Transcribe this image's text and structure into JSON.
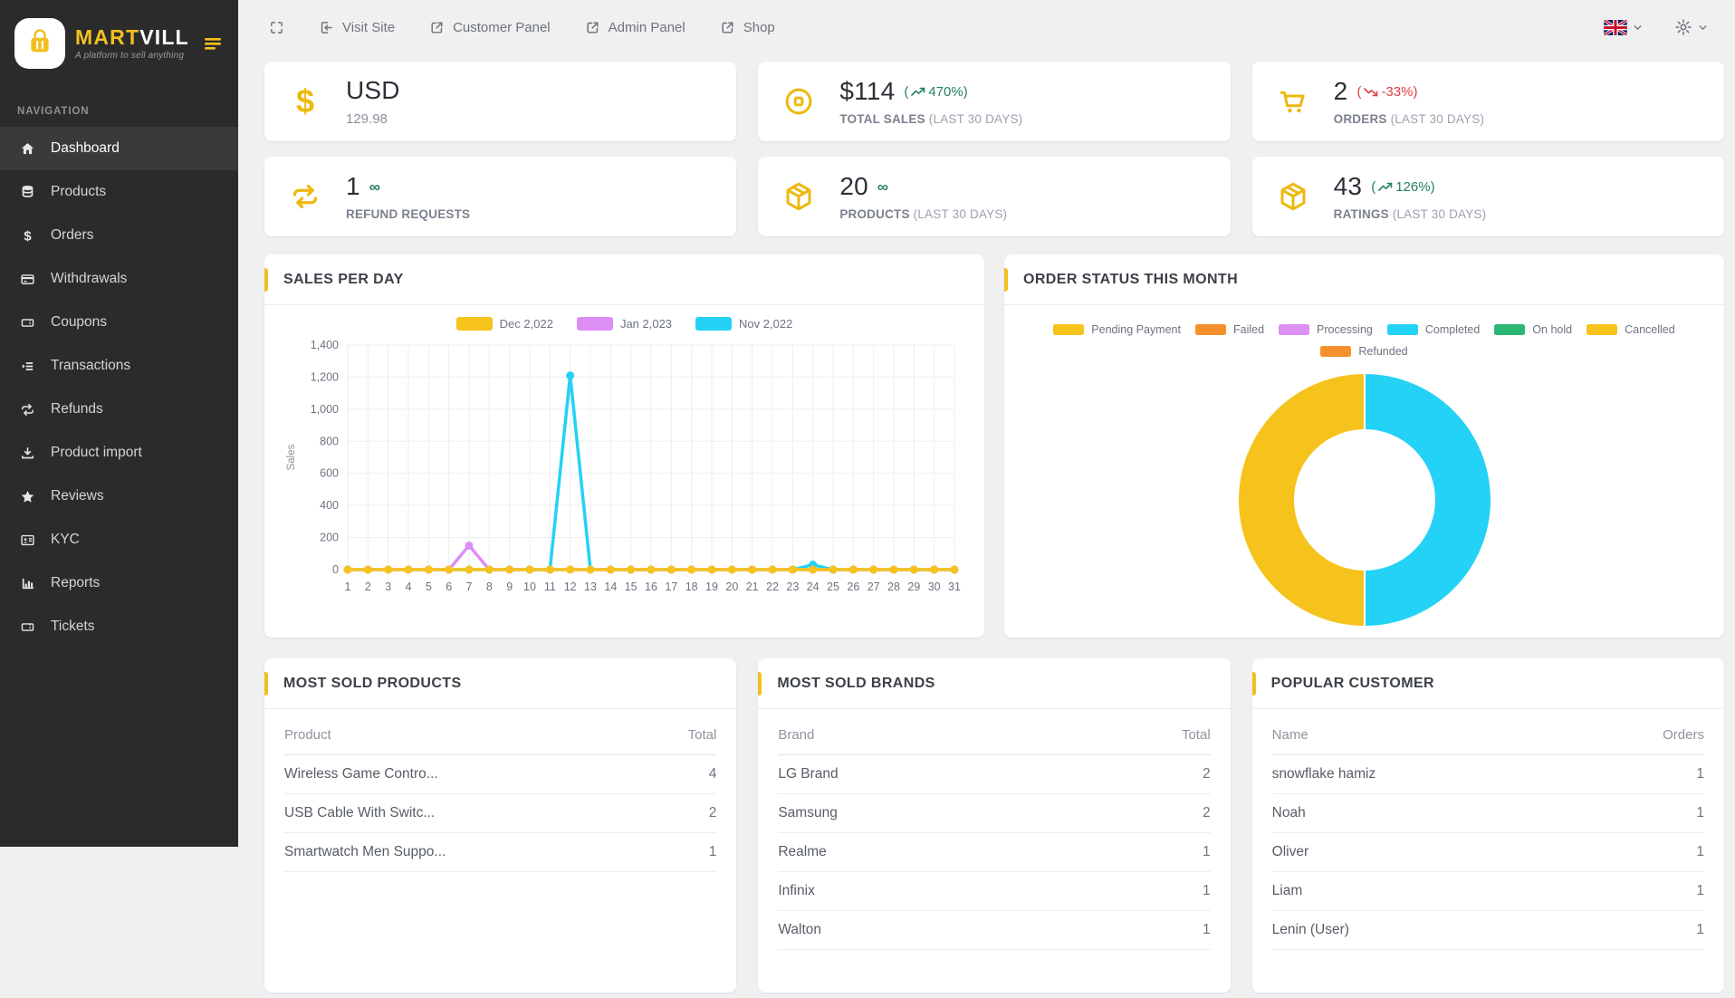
{
  "colors": {
    "accent_gold": "#f2c01e",
    "chart_yellow": "#f6c31c",
    "chart_violet": "#dc8ef5",
    "chart_cyan": "#23d2f4",
    "orange": "#f5912d",
    "green": "#2cb673",
    "trend_up": "#23825f",
    "trend_down": "#e23e3e",
    "sidebar_bg": "#2b2b2b",
    "sidebar_active_bg": "#3a3a3a"
  },
  "brand": {
    "name_primary": "MART",
    "name_secondary": "VILL",
    "tagline": "A platform to sell anything"
  },
  "sidebar": {
    "section_label": "NAVIGATION",
    "items": [
      {
        "label": "Dashboard",
        "icon": "home",
        "active": true
      },
      {
        "label": "Products",
        "icon": "database",
        "active": false
      },
      {
        "label": "Orders",
        "icon": "dollar",
        "active": false
      },
      {
        "label": "Withdrawals",
        "icon": "credit-card",
        "active": false
      },
      {
        "label": "Coupons",
        "icon": "ticket",
        "active": false
      },
      {
        "label": "Transactions",
        "icon": "list",
        "active": false
      },
      {
        "label": "Refunds",
        "icon": "repeat",
        "active": false
      },
      {
        "label": "Product import",
        "icon": "download",
        "active": false
      },
      {
        "label": "Reviews",
        "icon": "star",
        "active": false
      },
      {
        "label": "KYC",
        "icon": "id-card",
        "active": false
      },
      {
        "label": "Reports",
        "icon": "bar-chart",
        "active": false
      },
      {
        "label": "Tickets",
        "icon": "ticket",
        "active": false
      }
    ]
  },
  "topbar": {
    "links": [
      {
        "label": "Visit Site",
        "icon": "enter"
      },
      {
        "label": "Customer Panel",
        "icon": "external"
      },
      {
        "label": "Admin Panel",
        "icon": "external"
      },
      {
        "label": "Shop",
        "icon": "external"
      }
    ]
  },
  "stats": [
    {
      "id": "currency",
      "icon": "dollar-sign",
      "value": "USD",
      "label": "129.98",
      "label_style": "plain"
    },
    {
      "id": "total-sales",
      "icon": "coin",
      "value": "$114",
      "trend": {
        "open": "(",
        "value": "470%",
        "close": ")",
        "dir": "up"
      },
      "label": "TOTAL SALES",
      "label_paren": "(LAST 30 DAYS)"
    },
    {
      "id": "orders",
      "icon": "cart",
      "value": "2",
      "trend": {
        "open": "(",
        "value": "-33%",
        "close": ")",
        "dir": "down"
      },
      "label": "ORDERS",
      "label_paren": "(LAST 30 DAYS)"
    },
    {
      "id": "refund-requests",
      "icon": "refresh",
      "value": "1",
      "infinity": "∞",
      "label": "REFUND REQUESTS"
    },
    {
      "id": "products",
      "icon": "box",
      "value": "20",
      "infinity": "∞",
      "label": "PRODUCTS",
      "label_paren": "(LAST 30 DAYS)"
    },
    {
      "id": "ratings",
      "icon": "box",
      "value": "43",
      "trend": {
        "open": "(",
        "value": "126%",
        "close": ")",
        "dir": "up"
      },
      "label": "RATINGS",
      "label_paren": "(LAST 30 DAYS)"
    }
  ],
  "panels": {
    "sales": {
      "title": "SALES PER DAY"
    },
    "order_status": {
      "title": "ORDER STATUS THIS MONTH"
    },
    "most_sold_products": {
      "title": "MOST SOLD PRODUCTS",
      "columns": [
        "Product",
        "Total"
      ],
      "rows": [
        [
          "Wireless Game Contro...",
          "4"
        ],
        [
          "USB Cable With Switc...",
          "2"
        ],
        [
          "Smartwatch Men Suppo...",
          "1"
        ]
      ]
    },
    "most_sold_brands": {
      "title": "MOST SOLD BRANDS",
      "columns": [
        "Brand",
        "Total"
      ],
      "rows": [
        [
          "LG Brand",
          "2"
        ],
        [
          "Samsung",
          "2"
        ],
        [
          "Realme",
          "1"
        ],
        [
          "Infinix",
          "1"
        ],
        [
          "Walton",
          "1"
        ]
      ]
    },
    "popular_customer": {
      "title": "POPULAR CUSTOMER",
      "columns": [
        "Name",
        "Orders"
      ],
      "rows": [
        [
          "snowflake hamiz",
          "1"
        ],
        [
          "Noah",
          "1"
        ],
        [
          "Oliver",
          "1"
        ],
        [
          "Liam",
          "1"
        ],
        [
          "Lenin (User)",
          "1"
        ]
      ]
    }
  },
  "chart_data": [
    {
      "id": "sales-per-day",
      "type": "line",
      "title": "SALES PER DAY",
      "xlabel": "",
      "ylabel": "Sales",
      "ylim": [
        0,
        1400
      ],
      "ytick_labels": [
        "0",
        "200",
        "400",
        "600",
        "800",
        "1,000",
        "1,200",
        "1,400"
      ],
      "x": [
        1,
        2,
        3,
        4,
        5,
        6,
        7,
        8,
        9,
        10,
        11,
        12,
        13,
        14,
        15,
        16,
        17,
        18,
        19,
        20,
        21,
        22,
        23,
        24,
        25,
        26,
        27,
        28,
        29,
        30,
        31
      ],
      "series": [
        {
          "name": "Dec 2,022",
          "color": "#f6c31c",
          "values": [
            0,
            0,
            0,
            0,
            0,
            0,
            0,
            0,
            0,
            0,
            0,
            0,
            0,
            0,
            0,
            0,
            0,
            0,
            0,
            0,
            0,
            0,
            0,
            0,
            0,
            0,
            0,
            0,
            0,
            0,
            0
          ]
        },
        {
          "name": "Jan 2,023",
          "color": "#dc8ef5",
          "values": [
            0,
            0,
            0,
            0,
            0,
            0,
            150,
            0,
            0,
            0,
            0,
            0,
            0,
            0,
            0,
            0,
            0,
            0,
            0,
            0,
            0,
            0,
            0,
            0,
            0,
            0,
            0,
            0,
            0,
            0,
            0
          ]
        },
        {
          "name": "Nov 2,022",
          "color": "#23d2f4",
          "values": [
            0,
            0,
            0,
            0,
            0,
            0,
            0,
            0,
            0,
            0,
            0,
            1210,
            0,
            0,
            0,
            0,
            0,
            0,
            0,
            0,
            0,
            0,
            0,
            30,
            0,
            0,
            0,
            0,
            0,
            0,
            0
          ]
        }
      ],
      "legend_position": "top",
      "grid": true
    },
    {
      "id": "order-status-this-month",
      "type": "pie",
      "donut": true,
      "title": "ORDER STATUS THIS MONTH",
      "labels": [
        "Pending Payment",
        "Failed",
        "Processing",
        "Completed",
        "On hold",
        "Cancelled",
        "Refunded"
      ],
      "values": [
        50,
        0,
        0,
        50,
        0,
        0,
        0
      ],
      "colors": [
        "#f6c31c",
        "#f5912d",
        "#dc8ef5",
        "#23d2f4",
        "#2cb673",
        "#f6c31c",
        "#f5912d"
      ],
      "legend_position": "top"
    }
  ]
}
